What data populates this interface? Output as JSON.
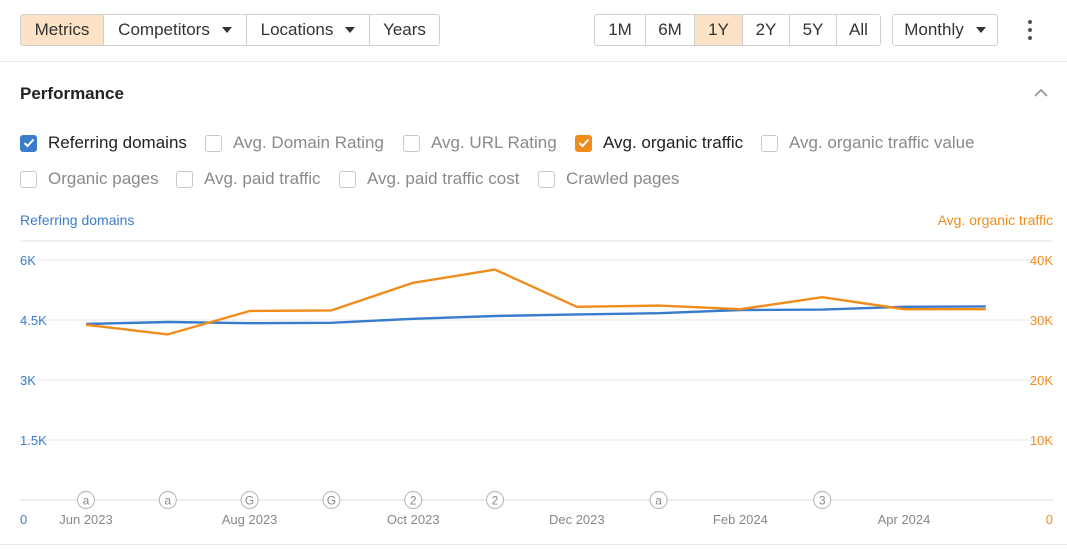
{
  "toolbar": {
    "left_tabs": [
      {
        "label": "Metrics",
        "active": true,
        "dropdown": false
      },
      {
        "label": "Competitors",
        "active": false,
        "dropdown": true
      },
      {
        "label": "Locations",
        "active": false,
        "dropdown": true
      },
      {
        "label": "Years",
        "active": false,
        "dropdown": false
      }
    ],
    "ranges": [
      {
        "label": "1M",
        "active": false
      },
      {
        "label": "6M",
        "active": false
      },
      {
        "label": "1Y",
        "active": true
      },
      {
        "label": "2Y",
        "active": false
      },
      {
        "label": "5Y",
        "active": false
      },
      {
        "label": "All",
        "active": false
      }
    ],
    "interval": "Monthly",
    "more_icon": "kebab-vertical-icon"
  },
  "performance": {
    "title": "Performance",
    "collapse_icon": "chevron-up-icon",
    "checkboxes": [
      {
        "label": "Referring domains",
        "checked": true,
        "color": "#3a7ccc"
      },
      {
        "label": "Avg. Domain Rating",
        "checked": false
      },
      {
        "label": "Avg. URL Rating",
        "checked": false
      },
      {
        "label": "Avg. organic traffic",
        "checked": true,
        "color": "#f08c1c"
      },
      {
        "label": "Avg. organic traffic value",
        "checked": false
      },
      {
        "label": "Organic pages",
        "checked": false
      },
      {
        "label": "Avg. paid traffic",
        "checked": false
      },
      {
        "label": "Avg. paid traffic cost",
        "checked": false
      },
      {
        "label": "Crawled pages",
        "checked": false
      }
    ]
  },
  "colors": {
    "accent_active": "#fde3c6",
    "series_blue": "#3a7ccc",
    "series_orange": "#f08c1c",
    "grid": "#e6e6e6"
  },
  "chart_data": {
    "type": "line",
    "left_axis_label": "Referring domains",
    "right_axis_label": "Avg. organic traffic",
    "left_ticks": [
      "0",
      "1.5K",
      "3K",
      "4.5K",
      "6K"
    ],
    "right_ticks": [
      "0",
      "10K",
      "20K",
      "30K",
      "40K"
    ],
    "left_ylim": [
      0,
      6000
    ],
    "right_ylim": [
      0,
      40000
    ],
    "x_tick_labels": [
      "Jun 2023",
      "Aug 2023",
      "Oct 2023",
      "Dec 2023",
      "Feb 2024",
      "Apr 2024"
    ],
    "x": [
      "2023-06",
      "2023-07",
      "2023-08",
      "2023-09",
      "2023-10",
      "2023-11",
      "2023-12",
      "2024-01",
      "2024-02",
      "2024-03",
      "2024-04",
      "2024-05"
    ],
    "series": [
      {
        "name": "Referring domains",
        "axis": "left",
        "color": "#3a7ccc",
        "values": [
          4400,
          4450,
          4420,
          4430,
          4530,
          4600,
          4640,
          4670,
          4750,
          4760,
          4830,
          4840
        ]
      },
      {
        "name": "Avg. organic traffic",
        "axis": "right",
        "color": "#f08c1c",
        "values": [
          29200,
          27600,
          31500,
          31600,
          36200,
          38400,
          32200,
          32400,
          31800,
          33800,
          31800,
          31800
        ]
      }
    ],
    "annotations": [
      {
        "x": "2023-06",
        "text": "a"
      },
      {
        "x": "2023-07",
        "text": "a"
      },
      {
        "x": "2023-08",
        "text": "G"
      },
      {
        "x": "2023-09",
        "text": "G"
      },
      {
        "x": "2023-10",
        "text": "2"
      },
      {
        "x": "2023-11",
        "text": "2"
      },
      {
        "x": "2024-01",
        "text": "a"
      },
      {
        "x": "2024-03",
        "text": "3"
      }
    ],
    "grid": true
  }
}
